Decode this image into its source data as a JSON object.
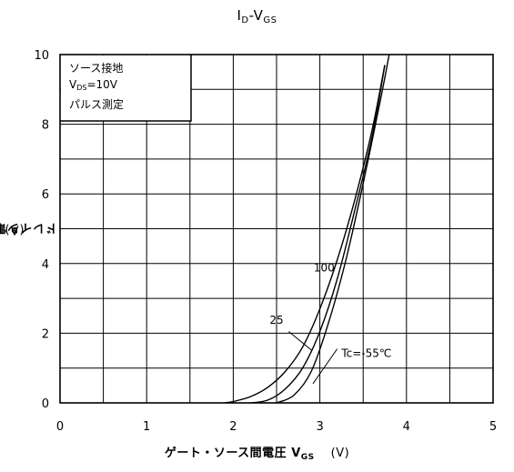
{
  "chart_data": {
    "type": "line",
    "title": "ID-VGS",
    "title_main": "I",
    "title_sub1": "D",
    "title_mid": "-V",
    "title_sub2": "GS",
    "ylabel_text": "ドレイン電流 I",
    "ylabel_sub": "D",
    "ylabel_unit": "(A)",
    "xlabel_text": "ゲート・ソース間電圧 V",
    "xlabel_sub": "GS",
    "xlabel_unit": "(V)",
    "xlim": [
      0,
      5
    ],
    "ylim": [
      0,
      10
    ],
    "x_ticks": [
      "0",
      "1",
      "2",
      "3",
      "4",
      "5"
    ],
    "y_ticks": [
      "0",
      "2",
      "4",
      "6",
      "8",
      "10"
    ],
    "grid": true,
    "conditions": {
      "line1": "ソース接地",
      "line2_main": "V",
      "line2_sub": "DS",
      "line2_value": "=10V",
      "line3": "パルス測定"
    },
    "series": [
      {
        "name": "100",
        "x": [
          1.9,
          2.0,
          2.2,
          2.4,
          2.6,
          2.8,
          3.0,
          3.2,
          3.4,
          3.6,
          3.75
        ],
        "y": [
          0.0,
          0.04,
          0.18,
          0.45,
          0.9,
          1.6,
          2.7,
          4.1,
          5.8,
          7.8,
          9.7
        ]
      },
      {
        "name": "25",
        "x": [
          2.2,
          2.4,
          2.6,
          2.8,
          3.0,
          3.2,
          3.4,
          3.6,
          3.75
        ],
        "y": [
          0.0,
          0.08,
          0.4,
          1.0,
          2.05,
          3.55,
          5.5,
          7.6,
          9.7
        ]
      },
      {
        "name": "Tc=-55℃",
        "x": [
          2.5,
          2.7,
          2.9,
          3.1,
          3.3,
          3.5,
          3.7,
          3.8
        ],
        "y": [
          0.0,
          0.22,
          0.9,
          2.3,
          4.1,
          6.3,
          8.7,
          10.0
        ]
      }
    ],
    "annotations": [
      "100",
      "25",
      "Tc=-55℃"
    ]
  }
}
